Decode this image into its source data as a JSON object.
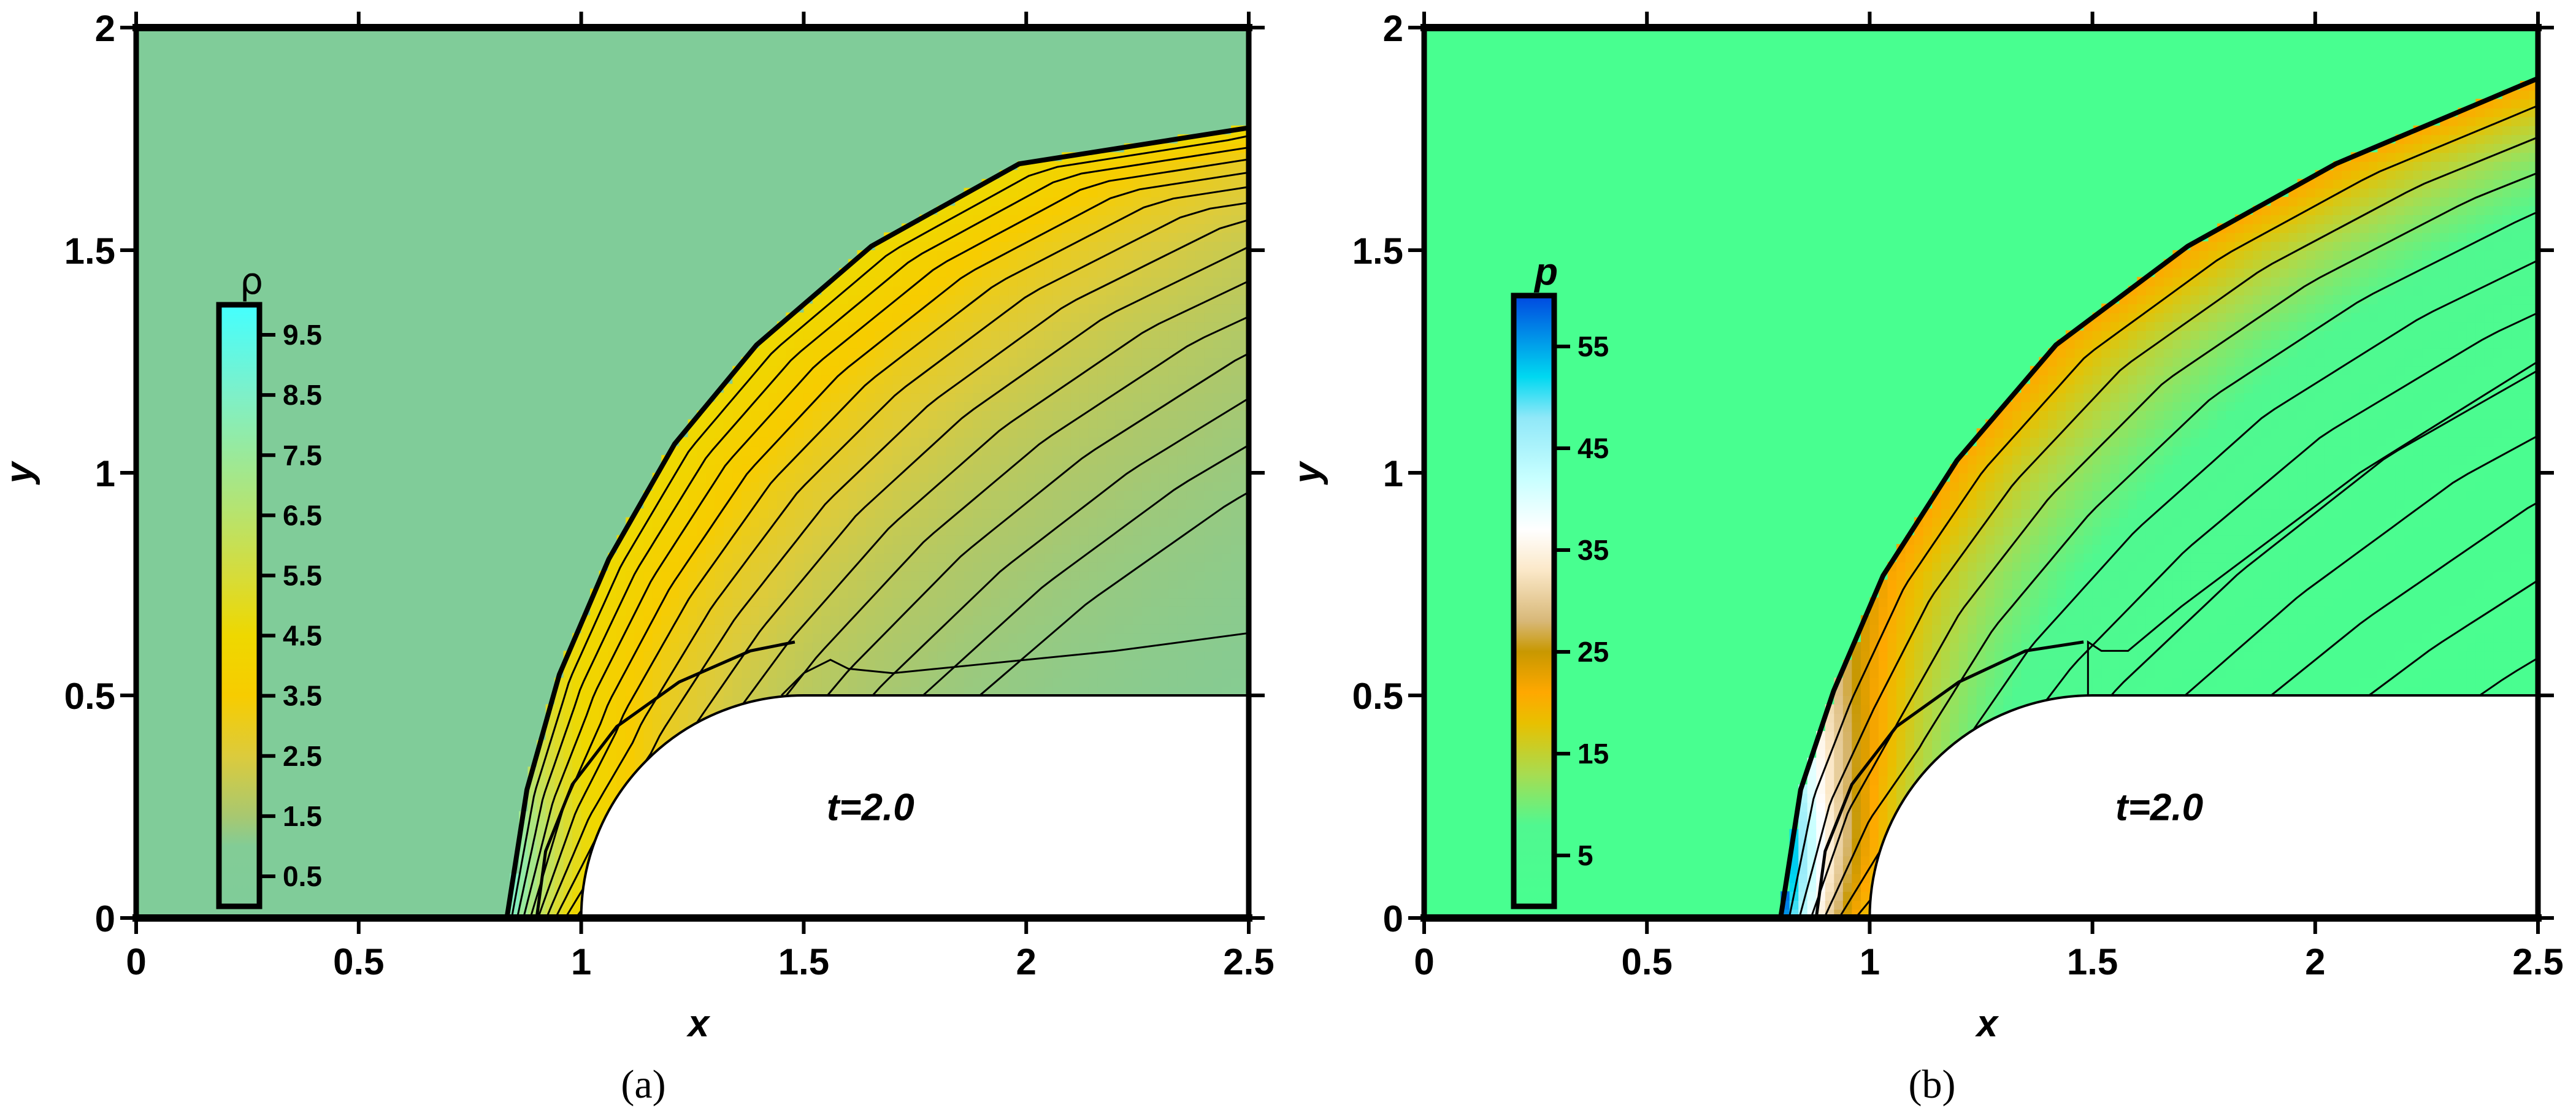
{
  "figure": {
    "panels": [
      {
        "id": "a",
        "caption": "(a)",
        "annotation": "t=2.0",
        "xlabel": "x",
        "ylabel": "y",
        "background_color": "#80CC99",
        "colorbar": {
          "title": "ρ",
          "ticks": [
            "9.5",
            "8.5",
            "7.5",
            "6.5",
            "5.5",
            "4.5",
            "3.5",
            "2.5",
            "1.5",
            "0.5"
          ],
          "stops": [
            {
              "v": 0.0,
              "c": "#80CC99"
            },
            {
              "v": 1.0,
              "c": "#82CC96"
            },
            {
              "v": 1.5,
              "c": "#A8C870"
            },
            {
              "v": 2.5,
              "c": "#DCCB3C"
            },
            {
              "v": 3.5,
              "c": "#F7CC00"
            },
            {
              "v": 4.5,
              "c": "#EED800"
            },
            {
              "v": 5.5,
              "c": "#D6DC3A"
            },
            {
              "v": 6.5,
              "c": "#B8E36C"
            },
            {
              "v": 7.5,
              "c": "#9AE99A"
            },
            {
              "v": 8.5,
              "c": "#7EF0C8"
            },
            {
              "v": 10.0,
              "c": "#44FFFF"
            }
          ],
          "range": [
            0,
            10
          ]
        }
      },
      {
        "id": "b",
        "caption": "(b)",
        "annotation": "t=2.0",
        "xlabel": "x",
        "ylabel": "y",
        "background_color": "#48FF90",
        "colorbar": {
          "title": "p",
          "ticks": [
            "55",
            "45",
            "35",
            "25",
            "15",
            "5"
          ],
          "stops": [
            {
              "v": 0,
              "c": "#48FF90"
            },
            {
              "v": 8,
              "c": "#50F890"
            },
            {
              "v": 13,
              "c": "#A8DC50"
            },
            {
              "v": 18,
              "c": "#E8C000"
            },
            {
              "v": 21,
              "c": "#FFA800"
            },
            {
              "v": 25,
              "c": "#C89800"
            },
            {
              "v": 28,
              "c": "#D8B878"
            },
            {
              "v": 33,
              "c": "#FBE8C8"
            },
            {
              "v": 37,
              "c": "#FFFFFF"
            },
            {
              "v": 42,
              "c": "#C8FFFF"
            },
            {
              "v": 48,
              "c": "#90E8F8"
            },
            {
              "v": 52,
              "c": "#00D8F0"
            },
            {
              "v": 60,
              "c": "#0048E0"
            }
          ],
          "range": [
            0,
            60
          ]
        }
      }
    ]
  },
  "chart_data": [
    {
      "type": "heatmap",
      "title": "(a) Density contours, t=2.0",
      "variable": "ρ",
      "xlabel": "x",
      "ylabel": "y",
      "xlim": [
        0,
        2.5
      ],
      "ylim": [
        0,
        2
      ],
      "xticks": [
        0,
        0.5,
        1,
        1.5,
        2,
        2.5
      ],
      "xtick_labels": [
        "0",
        "0.5",
        "1",
        "1.5",
        "2",
        "2.5"
      ],
      "yticks": [
        0,
        0.5,
        1,
        1.5,
        2
      ],
      "ytick_labels": [
        "0",
        "0.5",
        "1",
        "1.5",
        "2"
      ],
      "colorbar_ticks": [
        0.5,
        1.5,
        2.5,
        3.5,
        4.5,
        5.5,
        6.5,
        7.5,
        8.5,
        9.5
      ],
      "colorbar_range": [
        0,
        10
      ],
      "annotation": "t=2.0",
      "freestream_value": 1.0,
      "bow_shock": [
        [
          0.833,
          0
        ],
        [
          0.878,
          0.288
        ],
        [
          0.951,
          0.547
        ],
        [
          1.062,
          0.806
        ],
        [
          1.21,
          1.065
        ],
        [
          1.394,
          1.287
        ],
        [
          1.652,
          1.509
        ],
        [
          1.984,
          1.694
        ],
        [
          2.5,
          1.775
        ]
      ],
      "body": {
        "flat_top_y": 0.5,
        "nose_x": 1.0,
        "corner_center": [
          1.5,
          0
        ],
        "corner_radius": 0.5
      },
      "peak_region": "yellow band (ρ≈3.5–4.5) behind oblique part of shock"
    },
    {
      "type": "heatmap",
      "title": "(b) Pressure contours, t=2.0",
      "variable": "p",
      "xlabel": "x",
      "ylabel": "y",
      "xlim": [
        0,
        2.5
      ],
      "ylim": [
        0,
        2
      ],
      "xticks": [
        0,
        0.5,
        1,
        1.5,
        2,
        2.5
      ],
      "xtick_labels": [
        "0",
        "0.5",
        "1",
        "1.5",
        "2",
        "2.5"
      ],
      "yticks": [
        0,
        0.5,
        1,
        1.5,
        2
      ],
      "ytick_labels": [
        "0",
        "0.5",
        "1",
        "1.5",
        "2"
      ],
      "colorbar_ticks": [
        5,
        15,
        25,
        35,
        45,
        55
      ],
      "colorbar_range": [
        0,
        60
      ],
      "annotation": "t=2.0",
      "freestream_value": 1.0,
      "bow_shock": [
        [
          0.8,
          0
        ],
        [
          0.845,
          0.288
        ],
        [
          0.919,
          0.51
        ],
        [
          1.03,
          0.769
        ],
        [
          1.196,
          1.028
        ],
        [
          1.418,
          1.287
        ],
        [
          1.714,
          1.509
        ],
        [
          2.046,
          1.694
        ],
        [
          2.5,
          1.886
        ]
      ],
      "body": {
        "flat_top_y": 0.5,
        "nose_x": 1.0,
        "corner_center": [
          1.5,
          0
        ],
        "corner_radius": 0.5
      },
      "peak_region": "stagnation region near (0.9, 0) with p≈50–60 (cyan/blue)"
    }
  ]
}
